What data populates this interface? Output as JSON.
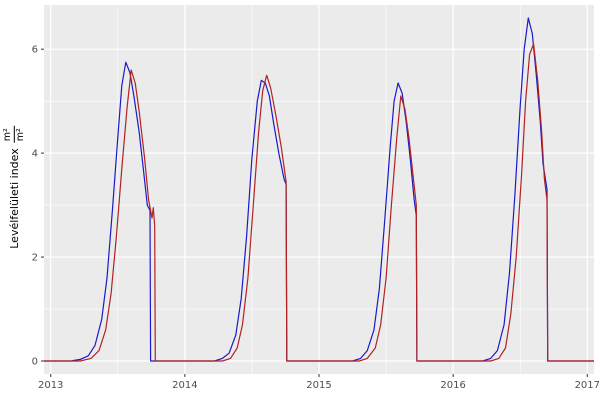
{
  "page": {
    "background": "#FFFFFF"
  },
  "chart_data": {
    "type": "line",
    "title": "",
    "xlabel": "",
    "ylabel": {
      "text": "Levélfelületi index",
      "fraction_numerator": "m²",
      "fraction_denominator": "m²"
    },
    "xlim": [
      2012.95,
      2017.05
    ],
    "ylim": [
      -0.25,
      6.85
    ],
    "x_ticks": [
      2013,
      2014,
      2015,
      2016,
      2017
    ],
    "y_ticks": [
      0,
      2,
      4,
      6
    ],
    "grid": true,
    "legend_position": "none",
    "panel_background": "#EBEBEB",
    "grid_major_color": "#FFFFFF",
    "grid_minor_color": "#FFFFFF",
    "tick_label_color": "#4D4D4D",
    "axis_tick_color": "#333333",
    "series": [
      {
        "name": "simulated-blue",
        "color": "#1A1AC8",
        "points": [
          [
            2012.95,
            0
          ],
          [
            2013.15,
            0
          ],
          [
            2013.22,
            0.03
          ],
          [
            2013.28,
            0.1
          ],
          [
            2013.33,
            0.3
          ],
          [
            2013.38,
            0.8
          ],
          [
            2013.42,
            1.6
          ],
          [
            2013.46,
            2.9
          ],
          [
            2013.5,
            4.3
          ],
          [
            2013.53,
            5.3
          ],
          [
            2013.56,
            5.75
          ],
          [
            2013.59,
            5.55
          ],
          [
            2013.62,
            5.1
          ],
          [
            2013.66,
            4.4
          ],
          [
            2013.69,
            3.7
          ],
          [
            2013.72,
            3.0
          ],
          [
            2013.74,
            2.9
          ],
          [
            2013.745,
            0
          ],
          [
            2014.0,
            0
          ],
          [
            2014.22,
            0
          ],
          [
            2014.28,
            0.05
          ],
          [
            2014.33,
            0.15
          ],
          [
            2014.38,
            0.5
          ],
          [
            2014.42,
            1.2
          ],
          [
            2014.46,
            2.4
          ],
          [
            2014.5,
            3.9
          ],
          [
            2014.54,
            5.0
          ],
          [
            2014.57,
            5.4
          ],
          [
            2014.6,
            5.35
          ],
          [
            2014.63,
            5.1
          ],
          [
            2014.66,
            4.6
          ],
          [
            2014.7,
            4.0
          ],
          [
            2014.74,
            3.5
          ],
          [
            2014.755,
            3.4
          ],
          [
            2014.76,
            0
          ],
          [
            2015.0,
            0
          ],
          [
            2015.25,
            0
          ],
          [
            2015.31,
            0.05
          ],
          [
            2015.36,
            0.2
          ],
          [
            2015.41,
            0.6
          ],
          [
            2015.45,
            1.4
          ],
          [
            2015.49,
            2.7
          ],
          [
            2015.53,
            4.1
          ],
          [
            2015.56,
            5.0
          ],
          [
            2015.59,
            5.35
          ],
          [
            2015.62,
            5.15
          ],
          [
            2015.65,
            4.6
          ],
          [
            2015.68,
            3.9
          ],
          [
            2015.71,
            3.1
          ],
          [
            2015.725,
            2.8
          ],
          [
            2015.73,
            0
          ],
          [
            2016.0,
            0
          ],
          [
            2016.22,
            0
          ],
          [
            2016.28,
            0.05
          ],
          [
            2016.33,
            0.2
          ],
          [
            2016.38,
            0.7
          ],
          [
            2016.42,
            1.7
          ],
          [
            2016.46,
            3.2
          ],
          [
            2016.5,
            4.9
          ],
          [
            2016.53,
            6.0
          ],
          [
            2016.56,
            6.6
          ],
          [
            2016.59,
            6.3
          ],
          [
            2016.62,
            5.5
          ],
          [
            2016.65,
            4.6
          ],
          [
            2016.67,
            3.8
          ],
          [
            2016.7,
            3.3
          ],
          [
            2016.705,
            0
          ],
          [
            2017.05,
            0
          ]
        ]
      },
      {
        "name": "measured-red",
        "color": "#B22222",
        "points": [
          [
            2012.95,
            0
          ],
          [
            2013.22,
            0
          ],
          [
            2013.3,
            0.05
          ],
          [
            2013.36,
            0.2
          ],
          [
            2013.41,
            0.6
          ],
          [
            2013.45,
            1.3
          ],
          [
            2013.49,
            2.4
          ],
          [
            2013.53,
            3.7
          ],
          [
            2013.57,
            4.9
          ],
          [
            2013.6,
            5.6
          ],
          [
            2013.63,
            5.35
          ],
          [
            2013.66,
            4.8
          ],
          [
            2013.7,
            3.9
          ],
          [
            2013.73,
            3.1
          ],
          [
            2013.755,
            2.75
          ],
          [
            2013.765,
            2.95
          ],
          [
            2013.775,
            2.6
          ],
          [
            2013.78,
            0
          ],
          [
            2014.0,
            0
          ],
          [
            2014.28,
            0
          ],
          [
            2014.34,
            0.05
          ],
          [
            2014.39,
            0.25
          ],
          [
            2014.43,
            0.7
          ],
          [
            2014.47,
            1.6
          ],
          [
            2014.51,
            3.0
          ],
          [
            2014.55,
            4.4
          ],
          [
            2014.58,
            5.2
          ],
          [
            2014.61,
            5.5
          ],
          [
            2014.64,
            5.25
          ],
          [
            2014.68,
            4.7
          ],
          [
            2014.72,
            4.1
          ],
          [
            2014.755,
            3.45
          ],
          [
            2014.76,
            0
          ],
          [
            2015.0,
            0
          ],
          [
            2015.3,
            0
          ],
          [
            2015.36,
            0.05
          ],
          [
            2015.42,
            0.25
          ],
          [
            2015.46,
            0.7
          ],
          [
            2015.5,
            1.6
          ],
          [
            2015.54,
            3.0
          ],
          [
            2015.58,
            4.3
          ],
          [
            2015.61,
            5.1
          ],
          [
            2015.64,
            4.85
          ],
          [
            2015.67,
            4.3
          ],
          [
            2015.7,
            3.6
          ],
          [
            2015.725,
            3.0
          ],
          [
            2015.73,
            0
          ],
          [
            2016.0,
            0
          ],
          [
            2016.28,
            0
          ],
          [
            2016.34,
            0.05
          ],
          [
            2016.39,
            0.25
          ],
          [
            2016.43,
            0.9
          ],
          [
            2016.47,
            2.0
          ],
          [
            2016.51,
            3.6
          ],
          [
            2016.54,
            5.0
          ],
          [
            2016.57,
            5.9
          ],
          [
            2016.6,
            6.1
          ],
          [
            2016.63,
            5.4
          ],
          [
            2016.66,
            4.4
          ],
          [
            2016.68,
            3.5
          ],
          [
            2016.7,
            3.1
          ],
          [
            2016.705,
            0
          ],
          [
            2017.05,
            0
          ]
        ]
      }
    ]
  }
}
